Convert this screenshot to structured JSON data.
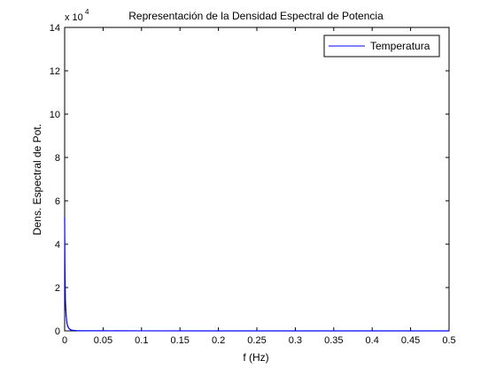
{
  "chart_data": {
    "type": "line",
    "title": "Representación de la Densidad Espectral de Potencia",
    "xlabel": "f (Hz)",
    "ylabel": "Dens. Espectral de Pot.",
    "y_exponent_label": {
      "base": "x 10",
      "power": "4"
    },
    "xlim": [
      0,
      0.5
    ],
    "ylim": [
      0,
      140000
    ],
    "x_ticks": [
      0,
      0.05,
      0.1,
      0.15,
      0.2,
      0.25,
      0.3,
      0.35,
      0.4,
      0.45,
      0.5
    ],
    "x_tick_labels": [
      "0",
      "0.05",
      "0.1",
      "0.15",
      "0.2",
      "0.25",
      "0.3",
      "0.35",
      "0.4",
      "0.45",
      "0.5"
    ],
    "y_ticks": [
      0,
      20000,
      40000,
      60000,
      80000,
      100000,
      120000,
      140000
    ],
    "y_tick_labels": [
      "0",
      "2",
      "4",
      "6",
      "8",
      "10",
      "12",
      "14"
    ],
    "grid": false,
    "legend": {
      "position": "top-right"
    },
    "series": [
      {
        "name": "Temperatura",
        "color": "#0000ff",
        "x": [
          0,
          0.0004,
          0.001,
          0.0015,
          0.002,
          0.003,
          0.004,
          0.005,
          0.006,
          0.007,
          0.008,
          0.01,
          0.015,
          0.02,
          0.05,
          0.1,
          0.2,
          0.3,
          0.4,
          0.5
        ],
        "y": [
          52000,
          30000,
          14000,
          10000,
          7000,
          3500,
          2200,
          1500,
          1000,
          700,
          500,
          250,
          120,
          80,
          40,
          20,
          10,
          8,
          5,
          5
        ]
      }
    ]
  }
}
